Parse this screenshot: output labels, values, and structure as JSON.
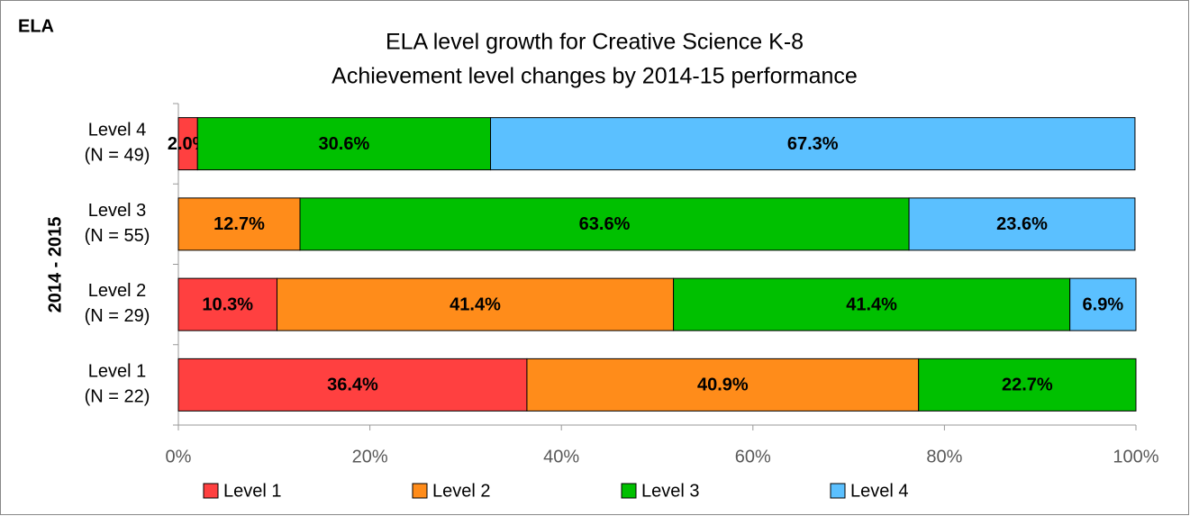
{
  "chart_data": {
    "type": "stacked-bar-horizontal",
    "corner_label": "ELA",
    "title": "ELA level growth for Creative Science K-8",
    "subtitle": "Achievement level changes by 2014-15 performance",
    "y_label": "2014 - 2015",
    "categories": [
      [
        "Level 4",
        "(N = 49)"
      ],
      [
        "Level 3",
        "(N = 55)"
      ],
      [
        "Level 2",
        "(N = 29)"
      ],
      [
        "Level 1",
        "(N = 22)"
      ]
    ],
    "series": [
      {
        "name": "Level 1",
        "color": "#ff4040",
        "values": [
          2.0,
          null,
          10.3,
          36.4
        ],
        "value_labels": [
          "2.0%",
          null,
          "10.3%",
          "36.4%"
        ]
      },
      {
        "name": "Level 2",
        "color": "#ff8c1a",
        "values": [
          null,
          12.7,
          41.4,
          40.9
        ],
        "value_labels": [
          null,
          "12.7%",
          "41.4%",
          "40.9%"
        ]
      },
      {
        "name": "Level 3",
        "color": "#00c000",
        "values": [
          30.6,
          63.6,
          41.4,
          22.7
        ],
        "value_labels": [
          "30.6%",
          "63.6%",
          "41.4%",
          "22.7%"
        ]
      },
      {
        "name": "Level 4",
        "color": "#5bc0ff",
        "values": [
          67.3,
          23.6,
          6.9,
          null
        ],
        "value_labels": [
          "67.3%",
          "23.6%",
          "6.9%",
          null
        ]
      }
    ],
    "xlim": [
      0,
      100
    ],
    "xticks": [
      {
        "value": 0,
        "label": "0%"
      },
      {
        "value": 20,
        "label": "20%"
      },
      {
        "value": 40,
        "label": "40%"
      },
      {
        "value": 60,
        "label": "60%"
      },
      {
        "value": 80,
        "label": "80%"
      },
      {
        "value": 100,
        "label": "100%"
      }
    ],
    "grid": false,
    "legend": "bottom"
  }
}
